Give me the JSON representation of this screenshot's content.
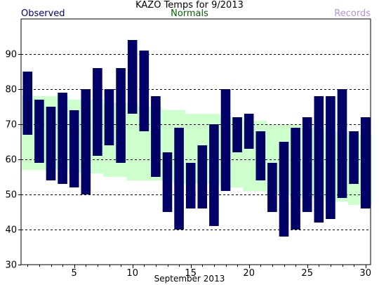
{
  "header": {
    "title": "KAZO Temps for 9/2013",
    "legend_observed": "Observed",
    "legend_normals": "Normals",
    "legend_records": "Records"
  },
  "colors": {
    "observed": "#000066",
    "normals": "#ccffcc",
    "records": "#b48fd6",
    "observed_label": "#000080",
    "normals_label": "#006400"
  },
  "chart_data": {
    "type": "bar",
    "title": "KAZO Temps for 9/2013",
    "xlabel": "September 2013",
    "ylabel": "",
    "ylim": [
      30,
      100
    ],
    "yticks": [
      30,
      40,
      50,
      60,
      70,
      80,
      90
    ],
    "xticks": [
      5,
      10,
      15,
      20,
      25,
      30
    ],
    "grid": true,
    "days": [
      1,
      2,
      3,
      4,
      5,
      6,
      7,
      8,
      9,
      10,
      11,
      12,
      13,
      14,
      15,
      16,
      17,
      18,
      19,
      20,
      21,
      22,
      23,
      24,
      25,
      26,
      27,
      28,
      29,
      30
    ],
    "series": [
      {
        "name": "Observed",
        "kind": "range",
        "low": [
          67,
          59,
          54,
          53,
          52,
          50,
          61,
          64,
          59,
          73,
          68,
          55,
          45,
          40,
          46,
          46,
          41,
          51,
          62,
          63,
          54,
          45,
          38,
          40,
          45,
          42,
          43,
          49,
          53,
          46
        ],
        "high": [
          85,
          77,
          75,
          79,
          74,
          80,
          86,
          80,
          86,
          94,
          91,
          78,
          62,
          69,
          59,
          64,
          70,
          80,
          72,
          73,
          68,
          59,
          65,
          69,
          72,
          78,
          78,
          80,
          68,
          72
        ]
      },
      {
        "name": "Normals",
        "kind": "range",
        "low": [
          57,
          57,
          57,
          57,
          56,
          56,
          56,
          55,
          55,
          54,
          54,
          54,
          54,
          53,
          53,
          53,
          53,
          52,
          52,
          51,
          51,
          50,
          50,
          49,
          49,
          49,
          48,
          48,
          47,
          47
        ],
        "high": [
          78,
          78,
          78,
          78,
          77,
          77,
          77,
          76,
          76,
          76,
          75,
          75,
          74,
          74,
          73,
          73,
          73,
          72,
          72,
          71,
          71,
          70,
          70,
          70,
          69,
          69,
          68,
          68,
          67,
          67
        ]
      }
    ]
  }
}
